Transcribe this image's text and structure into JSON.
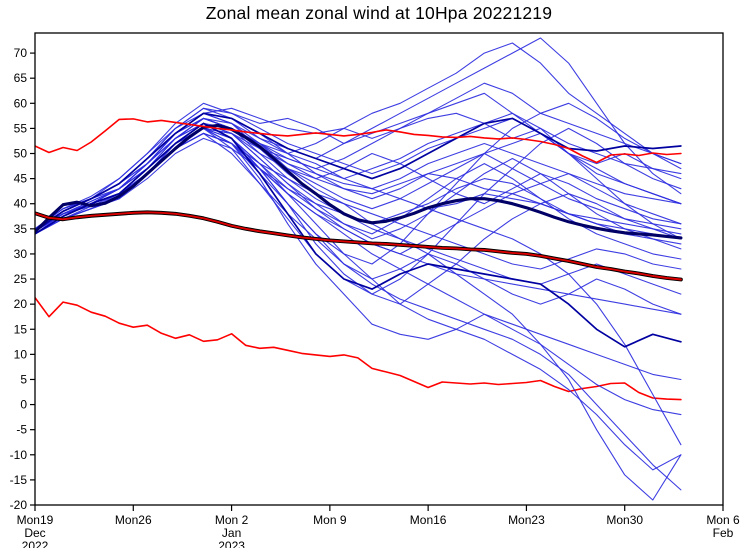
{
  "chart_data": {
    "type": "line",
    "title": "Zonal mean zonal wind at 10Hpa 20221219",
    "x_axis": {
      "unit": "date",
      "range_days": [
        0,
        49
      ],
      "ticks": [
        {
          "day": 0,
          "label": "Mon19",
          "sub": "Dec",
          "sub2": "2022"
        },
        {
          "day": 7,
          "label": "Mon26",
          "sub": "",
          "sub2": ""
        },
        {
          "day": 14,
          "label": "Mon 2",
          "sub": "Jan",
          "sub2": "2023"
        },
        {
          "day": 21,
          "label": "Mon 9",
          "sub": "",
          "sub2": ""
        },
        {
          "day": 28,
          "label": "Mon16",
          "sub": "",
          "sub2": ""
        },
        {
          "day": 35,
          "label": "Mon23",
          "sub": "",
          "sub2": ""
        },
        {
          "day": 42,
          "label": "Mon30",
          "sub": "",
          "sub2": ""
        },
        {
          "day": 49,
          "label": "Mon 6",
          "sub": "Feb",
          "sub2": ""
        }
      ]
    },
    "y_axis": {
      "range": [
        -20,
        74
      ],
      "ticks": [
        70,
        65,
        60,
        55,
        50,
        45,
        40,
        35,
        30,
        25,
        20,
        15,
        10,
        5,
        0,
        -5,
        -10,
        -15,
        -20
      ]
    },
    "colors": {
      "member": "#2e2ee0",
      "mean": "#000066",
      "control": "#0000a0",
      "clim_core": "#dd0000",
      "clim_edge": "#000000",
      "percentile": "#ff0000",
      "axis": "#000000",
      "background": "#ffffff"
    },
    "series": [
      {
        "name": "ensemble-mean",
        "role": "mean",
        "color_key": "mean",
        "width": 3.1,
        "x_step": 1,
        "y": [
          34.4,
          37.2,
          39.8,
          40.3,
          39.6,
          40.1,
          41.5,
          43.5,
          46,
          48.5,
          51,
          53.3,
          55.2,
          55.6,
          54.8,
          53.2,
          51.4,
          49,
          46.5,
          44,
          42,
          39.8,
          38,
          36.8,
          36.2,
          36.5,
          37.2,
          38.1,
          39.2,
          40,
          40.6,
          41,
          41,
          40.6,
          40,
          39.2,
          38.3,
          37.3,
          36.4,
          35.7,
          35.1,
          34.6,
          34.2,
          34,
          33.8,
          33.5,
          33.2
        ]
      },
      {
        "name": "climatology",
        "role": "climatology",
        "color_key": "clim_core",
        "edge_key": "clim_edge",
        "width": 1.9,
        "edge_width": 3.8,
        "x_step": 1,
        "y": [
          38.1,
          37.2,
          36.9,
          37.3,
          37.6,
          37.8,
          38.0,
          38.2,
          38.3,
          38.2,
          38.0,
          37.6,
          37.1,
          36.4,
          35.6,
          35.0,
          34.5,
          34.1,
          33.7,
          33.3,
          33.0,
          32.7,
          32.5,
          32.3,
          32.1,
          32.0,
          31.8,
          31.6,
          31.4,
          31.2,
          31.1,
          30.9,
          30.8,
          30.5,
          30.2,
          30.0,
          29.6,
          29.1,
          28.6,
          28.0,
          27.4,
          27.0,
          26.5,
          26.1,
          25.6,
          25.2,
          24.9
        ]
      },
      {
        "name": "upper-percentile",
        "role": "percentile-upper",
        "color_key": "percentile",
        "width": 1.6,
        "x_step": 1,
        "y": [
          51.5,
          50.2,
          51.2,
          50.6,
          52.3,
          54.5,
          56.8,
          56.9,
          56.3,
          56.6,
          56.2,
          55.8,
          55.4,
          55.0,
          54.7,
          54.3,
          54.0,
          53.7,
          53.5,
          53.8,
          54.1,
          53.8,
          53.5,
          53.8,
          54.2,
          54.7,
          54.3,
          53.8,
          53.6,
          53.3,
          53.2,
          53.4,
          53.1,
          52.9,
          53.1,
          52.8,
          52.4,
          51.8,
          51.0,
          49.5,
          48.2,
          49.7,
          49.9,
          49.6,
          50.1,
          49.8,
          50.0
        ]
      },
      {
        "name": "lower-percentile",
        "role": "percentile-lower",
        "color_key": "percentile",
        "width": 1.6,
        "x_step": 1,
        "y": [
          21.3,
          17.5,
          20.4,
          19.8,
          18.4,
          17.6,
          16.2,
          15.4,
          15.8,
          14.2,
          13.2,
          13.9,
          12.6,
          12.9,
          14.1,
          11.8,
          11.2,
          11.4,
          10.8,
          10.2,
          9.9,
          9.6,
          9.9,
          9.3,
          7.2,
          6.5,
          5.8,
          4.6,
          3.4,
          4.5,
          4.3,
          4.1,
          4.3,
          4.0,
          4.2,
          4.4,
          4.8,
          3.6,
          2.6,
          3.2,
          3.6,
          4.2,
          4.3,
          2.4,
          1.3,
          1.1,
          1.0
        ]
      },
      {
        "name": "control-high",
        "role": "control",
        "color_key": "control",
        "width": 1.7,
        "x_step": 2,
        "y": [
          34.5,
          38.5,
          41,
          44,
          49,
          54,
          58,
          57,
          54,
          51,
          49,
          47,
          45,
          47,
          50,
          53,
          56,
          57,
          54,
          51,
          50.5,
          51.5,
          51,
          51.5
        ]
      },
      {
        "name": "control-low",
        "role": "control",
        "color_key": "control",
        "width": 1.7,
        "x_step": 2,
        "y": [
          34,
          37.5,
          40,
          42,
          47,
          52,
          56,
          53,
          46,
          38,
          30,
          25,
          23,
          26,
          28,
          27,
          26,
          25,
          24,
          20,
          15,
          11.5,
          14,
          12.5
        ]
      }
    ],
    "ensemble_members": {
      "color_key": "member",
      "width": 1.1,
      "opacity": 0.92,
      "x_step": 2,
      "series": [
        [
          34.5,
          38,
          40,
          43,
          48,
          54,
          58,
          59,
          57,
          55,
          54,
          55,
          53,
          55,
          57,
          58,
          56,
          53,
          55,
          52,
          50,
          48,
          47,
          46
        ],
        [
          35,
          39,
          41,
          44,
          49,
          55,
          59,
          57,
          53,
          50,
          48,
          45,
          47,
          49,
          52,
          54,
          56,
          58,
          55,
          50,
          46,
          44,
          42,
          40
        ],
        [
          34,
          37.5,
          40,
          42,
          47,
          52,
          56,
          55,
          51,
          46,
          42,
          38,
          36,
          38,
          40,
          43,
          45,
          44,
          41,
          38,
          36,
          34,
          33,
          32
        ],
        [
          34.5,
          38,
          39.5,
          41,
          46,
          51,
          55,
          53,
          47,
          40,
          32,
          26,
          22,
          20,
          24,
          28,
          33,
          37,
          40,
          42,
          40,
          37,
          35,
          33
        ],
        [
          35,
          38.5,
          41,
          44,
          48,
          53,
          57,
          56,
          52,
          47,
          43,
          40,
          36,
          33,
          30,
          26,
          22,
          18,
          12,
          5,
          -5,
          -14,
          -19,
          -10
        ],
        [
          34,
          37,
          39,
          41,
          46,
          52,
          55,
          52,
          45,
          36,
          28,
          22,
          16,
          14,
          13,
          15,
          18,
          16,
          14,
          12,
          10,
          8,
          6,
          5
        ],
        [
          35,
          39,
          41,
          45,
          50,
          56,
          60,
          58,
          56,
          57,
          55,
          52,
          54,
          56,
          58,
          60,
          62,
          58,
          54,
          50,
          48,
          50,
          47,
          45
        ],
        [
          34.5,
          38,
          40,
          43,
          48,
          54,
          57,
          55,
          52,
          50,
          52,
          55,
          58,
          60,
          63,
          66,
          70,
          72,
          68,
          62,
          58,
          54,
          50,
          48
        ],
        [
          34,
          37,
          39.5,
          42,
          47,
          53,
          56,
          54,
          49,
          44,
          40,
          36,
          33,
          35,
          38,
          42,
          46,
          49,
          46,
          42,
          38,
          35,
          33,
          31
        ],
        [
          35,
          38,
          40,
          42,
          46,
          51,
          54,
          50,
          44,
          38,
          33,
          28,
          25,
          27,
          30,
          28,
          25,
          22,
          20,
          22,
          25,
          23,
          20,
          18
        ],
        [
          34.5,
          38.5,
          41,
          44,
          49,
          54,
          58,
          56,
          51,
          47,
          44,
          41,
          39,
          41,
          44,
          47,
          50,
          52,
          54,
          50,
          45,
          40,
          36,
          33
        ],
        [
          34,
          37.5,
          40,
          43,
          47,
          52,
          55,
          53,
          48,
          42,
          36,
          30,
          25,
          20,
          17,
          15,
          13,
          10,
          7,
          3,
          -2,
          -8,
          -13,
          -10
        ],
        [
          35,
          39,
          41.5,
          45,
          50,
          55,
          58,
          57,
          54,
          50,
          46,
          43,
          41,
          43,
          46,
          48,
          50,
          47,
          44,
          41,
          39,
          37,
          36,
          35
        ],
        [
          34,
          37,
          39,
          41,
          45,
          50,
          53,
          51,
          47,
          43,
          40,
          38,
          36,
          37,
          39,
          40,
          42,
          41,
          40,
          38,
          37,
          36,
          35,
          34
        ],
        [
          34.5,
          38,
          40,
          42,
          46,
          52,
          56,
          53,
          47,
          40,
          34,
          30,
          28,
          32,
          38,
          44,
          50,
          55,
          58,
          60,
          57,
          53,
          50,
          47
        ],
        [
          35,
          38.5,
          41,
          44,
          48,
          53,
          57,
          55,
          50,
          45,
          41,
          38,
          35,
          33,
          31,
          29,
          27,
          25,
          24,
          26,
          28,
          26,
          24,
          22
        ],
        [
          34,
          38,
          40,
          43,
          48,
          54,
          58,
          56,
          53,
          51,
          49,
          52,
          55,
          58,
          61,
          64,
          67,
          70,
          73,
          68,
          60,
          52,
          46,
          42
        ],
        [
          34.5,
          38,
          40,
          42,
          47,
          52,
          55,
          52,
          46,
          40,
          34,
          28,
          24,
          21,
          19,
          17,
          15,
          13,
          10,
          6,
          0,
          -6,
          -12,
          -17
        ],
        [
          35,
          38,
          40.5,
          43,
          47,
          52,
          55,
          54,
          50,
          47,
          45,
          43,
          42,
          44,
          46,
          45,
          43,
          42,
          40,
          38,
          36,
          35,
          34,
          33
        ],
        [
          34,
          37.5,
          40,
          42,
          47,
          53,
          57,
          55,
          52,
          48,
          45,
          47,
          50,
          48,
          45,
          42,
          40,
          43,
          46,
          44,
          41,
          39,
          37,
          36
        ],
        [
          34.5,
          38,
          40,
          43,
          48,
          53,
          56,
          54,
          49,
          44,
          39,
          35,
          32,
          30,
          33,
          36,
          39,
          42,
          44,
          46,
          43,
          40,
          38,
          36
        ],
        [
          35,
          38.5,
          41,
          43,
          47,
          52,
          55,
          51,
          44,
          37,
          30,
          25,
          22,
          25,
          30,
          36,
          42,
          47,
          52,
          55,
          52,
          48,
          45,
          43
        ],
        [
          34,
          37,
          39,
          42,
          46,
          51,
          54,
          52,
          48,
          45,
          42,
          40,
          38,
          36,
          34,
          32,
          30,
          28,
          27,
          29,
          31,
          30,
          28,
          27
        ],
        [
          34.5,
          38,
          40,
          42,
          46,
          51,
          54,
          52,
          47,
          42,
          38,
          34,
          30,
          27,
          24,
          21,
          18,
          15,
          12,
          8,
          4,
          1,
          -1,
          -2
        ],
        [
          35,
          39,
          41,
          44,
          49,
          55,
          59,
          58,
          55,
          52,
          50,
          48,
          46,
          48,
          51,
          53,
          55,
          57,
          54,
          50,
          47,
          44,
          42,
          40
        ],
        [
          34,
          37.5,
          40,
          43,
          47,
          52,
          56,
          53,
          48,
          43,
          39,
          36,
          34,
          37,
          41,
          45,
          48,
          45,
          41,
          37,
          34,
          32,
          30,
          29
        ],
        [
          34.5,
          38,
          40.5,
          43,
          48,
          53,
          57,
          55,
          51,
          48,
          46,
          44,
          43,
          45,
          48,
          50,
          52,
          50,
          48,
          46,
          44,
          42,
          41,
          40
        ],
        [
          35,
          38,
          40,
          42,
          46,
          51,
          54,
          52,
          47,
          42,
          38,
          35,
          32,
          30,
          28,
          26,
          25,
          24,
          23,
          22,
          21,
          20,
          19,
          18
        ],
        [
          34,
          37.5,
          40,
          43,
          47,
          52,
          55,
          54,
          51,
          49,
          47,
          49,
          52,
          55,
          58,
          61,
          64,
          62,
          58,
          56,
          54,
          52,
          50,
          48
        ],
        [
          34.5,
          38,
          40,
          43,
          48,
          54,
          57,
          55,
          52,
          49,
          47,
          45,
          43,
          41,
          39,
          37,
          35,
          33,
          30,
          26,
          20,
          12,
          2,
          -8
        ]
      ]
    }
  }
}
